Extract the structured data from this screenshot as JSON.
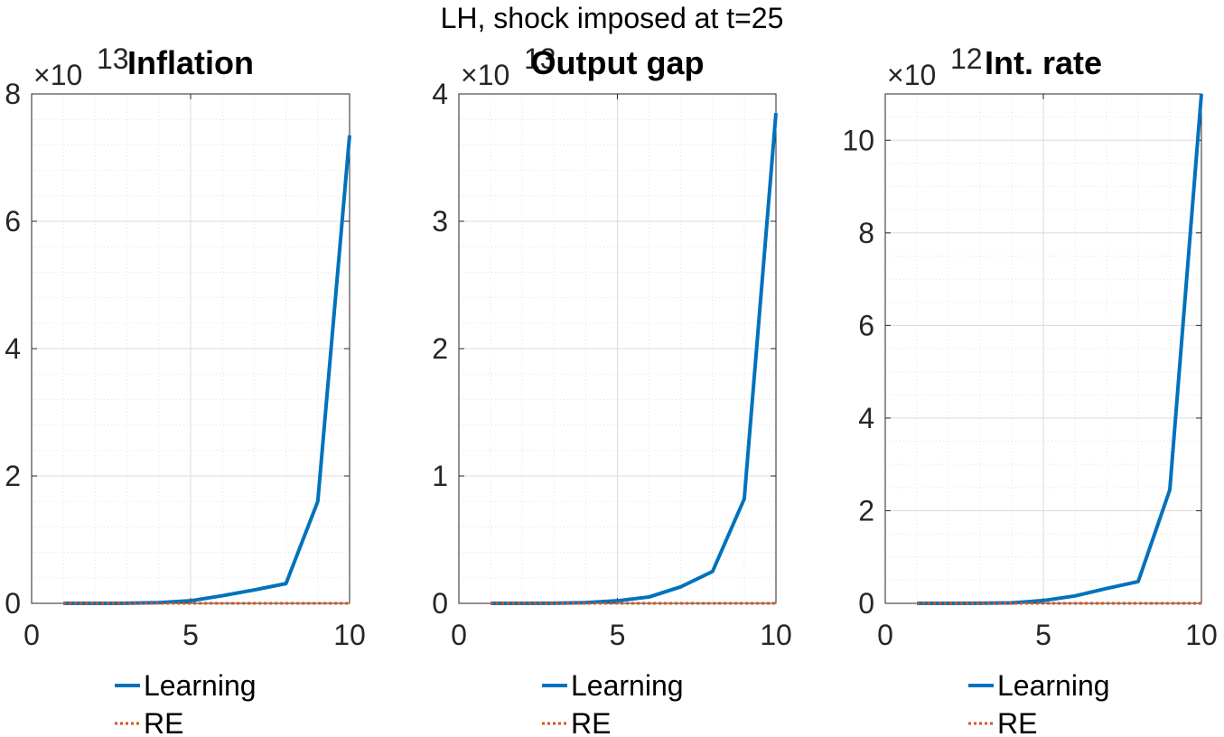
{
  "figure": {
    "title": "LH, shock imposed at t=25"
  },
  "legend": {
    "entries": [
      {
        "name": "Learning",
        "color": "#0072BD",
        "style": "solid"
      },
      {
        "name": "RE",
        "color": "#D95319",
        "style": "dotted"
      }
    ]
  },
  "chart_data": [
    {
      "type": "line",
      "title": "Inflation",
      "exponent_label": "×10",
      "exponent": "13",
      "x": [
        1,
        2,
        3,
        4,
        5,
        6,
        7,
        8,
        9,
        10
      ],
      "xlim": [
        0,
        10
      ],
      "xticks": [
        "0",
        "5",
        "10"
      ],
      "ylim": [
        0,
        8
      ],
      "yticks": [
        "0",
        "2",
        "4",
        "6",
        "8"
      ],
      "grid": true,
      "minor_grid": true,
      "series": [
        {
          "name": "Learning",
          "values": [
            0,
            0.0001,
            0.001,
            0.01,
            0.04,
            0.12,
            0.21,
            0.31,
            1.6,
            7.35
          ]
        },
        {
          "name": "RE",
          "values": [
            0,
            0,
            0,
            0,
            0,
            0,
            0,
            0,
            0,
            0
          ]
        }
      ]
    },
    {
      "type": "line",
      "title": "Output gap",
      "exponent_label": "×10",
      "exponent": "13",
      "x": [
        1,
        2,
        3,
        4,
        5,
        6,
        7,
        8,
        9,
        10
      ],
      "xlim": [
        0,
        10
      ],
      "xticks": [
        "0",
        "5",
        "10"
      ],
      "ylim": [
        0,
        4
      ],
      "yticks": [
        "0",
        "1",
        "2",
        "3",
        "4"
      ],
      "grid": true,
      "minor_grid": true,
      "series": [
        {
          "name": "Learning",
          "values": [
            0,
            0.0001,
            0.001,
            0.005,
            0.02,
            0.05,
            0.13,
            0.25,
            0.82,
            3.85
          ]
        },
        {
          "name": "RE",
          "values": [
            0,
            0,
            0,
            0,
            0,
            0,
            0,
            0,
            0,
            0
          ]
        }
      ]
    },
    {
      "type": "line",
      "title": "Int. rate",
      "exponent_label": "×10",
      "exponent": "12",
      "x": [
        1,
        2,
        3,
        4,
        5,
        6,
        7,
        8,
        9,
        10
      ],
      "xlim": [
        0,
        10
      ],
      "xticks": [
        "0",
        "5",
        "10"
      ],
      "ylim": [
        0,
        11
      ],
      "yticks": [
        "0",
        "2",
        "4",
        "6",
        "8",
        "10"
      ],
      "grid": true,
      "minor_grid": true,
      "series": [
        {
          "name": "Learning",
          "values": [
            0,
            0.0002,
            0.002,
            0.01,
            0.06,
            0.16,
            0.32,
            0.47,
            2.45,
            11.0
          ]
        },
        {
          "name": "RE",
          "values": [
            0,
            0,
            0,
            0,
            0,
            0,
            0,
            0,
            0,
            0
          ]
        }
      ]
    }
  ]
}
